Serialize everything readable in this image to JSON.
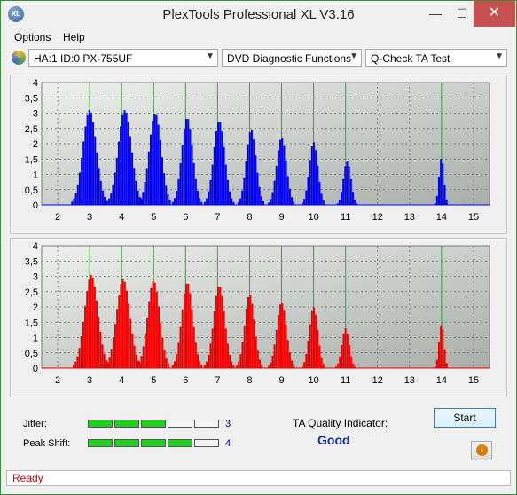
{
  "window": {
    "title": "PlexTools Professional XL V3.16",
    "icon_text": "XL"
  },
  "titlebar_buttons": {
    "minimize": "—",
    "maximize": "☐",
    "close": "✕"
  },
  "menu": {
    "items": [
      "Options",
      "Help"
    ]
  },
  "toolbar": {
    "drive": "HA:1 ID:0  PX-755UF",
    "function": "DVD Diagnostic Functions",
    "test": "Q-Check TA Test",
    "dropdown_arrow": "▼"
  },
  "colors": {
    "top_series": "#0000ee",
    "bottom_series": "#ee0000",
    "vertical_markers": "#00cc00",
    "meter_on": "#1fd01f"
  },
  "chart_data": [
    {
      "type": "bar",
      "series_color": "#0000ee",
      "xlim": [
        1.5,
        15.5
      ],
      "ylim": [
        0,
        4
      ],
      "xticks": [
        2,
        3,
        4,
        5,
        6,
        7,
        8,
        9,
        10,
        11,
        12,
        13,
        14,
        15
      ],
      "yticks": [
        "0",
        "0,5",
        "1",
        "1,5",
        "2",
        "2,5",
        "3",
        "3,5",
        "4"
      ],
      "grid": true,
      "markers": [
        3,
        4,
        5,
        6,
        7,
        8,
        9,
        10,
        11,
        14
      ],
      "peaks": [
        {
          "center": 3.0,
          "height": 3.1,
          "width": 0.55
        },
        {
          "center": 4.1,
          "height": 3.1,
          "width": 0.55
        },
        {
          "center": 5.05,
          "height": 3.0,
          "width": 0.5
        },
        {
          "center": 6.05,
          "height": 2.85,
          "width": 0.45
        },
        {
          "center": 7.05,
          "height": 2.75,
          "width": 0.45
        },
        {
          "center": 8.05,
          "height": 2.45,
          "width": 0.4
        },
        {
          "center": 9.0,
          "height": 2.2,
          "width": 0.4
        },
        {
          "center": 10.0,
          "height": 2.05,
          "width": 0.35
        },
        {
          "center": 11.05,
          "height": 1.45,
          "width": 0.3
        },
        {
          "center": 14.0,
          "height": 1.55,
          "width": 0.2
        }
      ]
    },
    {
      "type": "bar",
      "series_color": "#ee0000",
      "xlim": [
        1.5,
        15.5
      ],
      "ylim": [
        0,
        4
      ],
      "xticks": [
        2,
        3,
        4,
        5,
        6,
        7,
        8,
        9,
        10,
        11,
        12,
        13,
        14,
        15
      ],
      "yticks": [
        "0",
        "0,5",
        "1",
        "1,5",
        "2",
        "2,5",
        "3",
        "3,5",
        "4"
      ],
      "grid": true,
      "markers": [
        3,
        4,
        5,
        6,
        7,
        8,
        9,
        10,
        11,
        14
      ],
      "peaks": [
        {
          "center": 3.05,
          "height": 3.05,
          "width": 0.55
        },
        {
          "center": 4.05,
          "height": 2.9,
          "width": 0.55
        },
        {
          "center": 5.0,
          "height": 2.85,
          "width": 0.5
        },
        {
          "center": 6.05,
          "height": 2.8,
          "width": 0.45
        },
        {
          "center": 7.05,
          "height": 2.7,
          "width": 0.45
        },
        {
          "center": 8.0,
          "height": 2.4,
          "width": 0.4
        },
        {
          "center": 9.0,
          "height": 2.15,
          "width": 0.4
        },
        {
          "center": 10.0,
          "height": 2.0,
          "width": 0.35
        },
        {
          "center": 11.0,
          "height": 1.3,
          "width": 0.3
        },
        {
          "center": 14.0,
          "height": 1.45,
          "width": 0.2
        }
      ]
    }
  ],
  "metrics": {
    "jitter": {
      "label": "Jitter:",
      "value": "3",
      "segments_on": 3,
      "segments_total": 5
    },
    "peak_shift": {
      "label": "Peak Shift:",
      "value": "4",
      "segments_on": 4,
      "segments_total": 5
    }
  },
  "ta_quality": {
    "label": "TA Quality Indicator:",
    "value": "Good"
  },
  "buttons": {
    "start": "Start",
    "info": "i"
  },
  "status": {
    "text": "Ready"
  }
}
